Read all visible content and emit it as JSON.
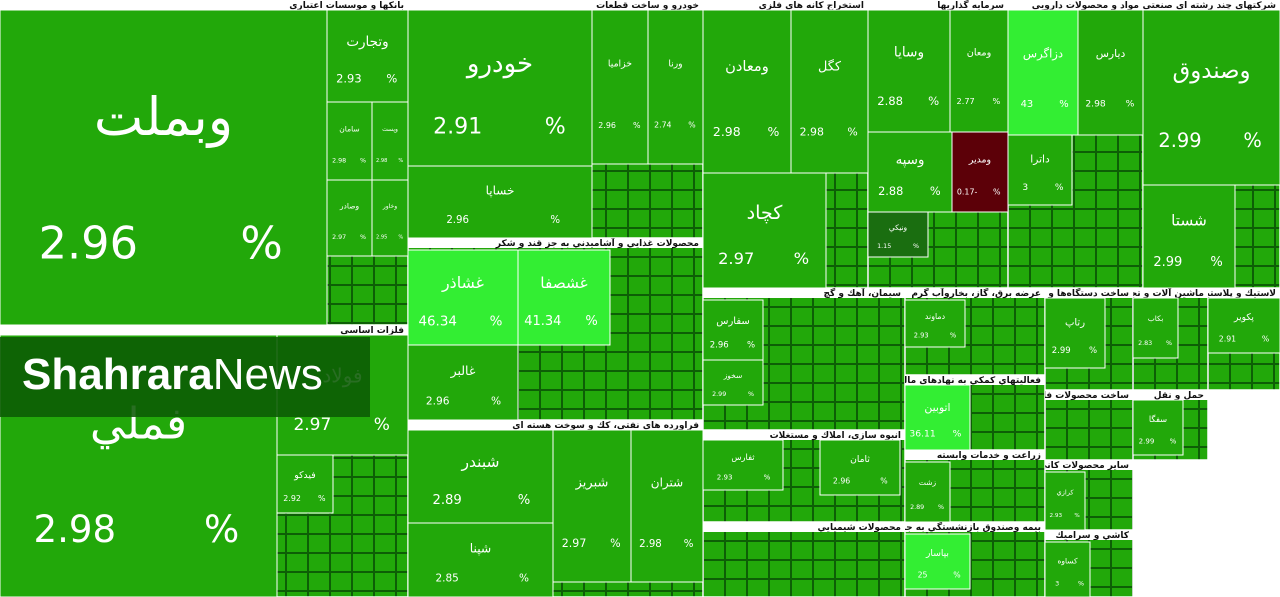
{
  "chart_data": {
    "type": "treemap",
    "unit": "%",
    "sectors": [
      {
        "title": "بانکها و موسسات اعتباری",
        "tiles": [
          {
            "name": "وبملت",
            "value": 2.96,
            "color": "#22a80a"
          },
          {
            "name": "وتجارت",
            "value": 2.93,
            "color": "#22a80a"
          },
          {
            "name": "سامان",
            "value": 2.98,
            "color": "#22a80a"
          },
          {
            "name": "وپست",
            "value": 2.98,
            "color": "#22a80a"
          },
          {
            "name": "وصادر",
            "value": 2.97,
            "color": "#22a80a"
          },
          {
            "name": "وخاور",
            "value": 2.95,
            "color": "#22a80a"
          }
        ]
      },
      {
        "title": "فلزات اساسی",
        "tiles": [
          {
            "name": "فملي",
            "value": 2.98,
            "color": "#22a80a"
          },
          {
            "name": "فولاد",
            "value": 2.97,
            "color": "#22a80a"
          },
          {
            "name": "فيدكو",
            "value": 2.92,
            "color": "#22a80a"
          }
        ]
      },
      {
        "title": "خودرو و ساخت قطعات",
        "tiles": [
          {
            "name": "خودرو",
            "value": 2.91,
            "color": "#22a80a"
          },
          {
            "name": "خساپا",
            "value": 2.96,
            "color": "#22a80a"
          },
          {
            "name": "خزاميا",
            "value": 2.96,
            "color": "#22a80a"
          },
          {
            "name": "ورنا",
            "value": 2.74,
            "color": "#22a80a"
          }
        ]
      },
      {
        "title": "محصولات غذايي و آشاميدني به جز قند و شكر",
        "tiles": [
          {
            "name": "غشاذر",
            "value": 46.34,
            "color": "#33ee33"
          },
          {
            "name": "غشصفا",
            "value": 41.34,
            "color": "#33ee33"
          },
          {
            "name": "غالبر",
            "value": 2.96,
            "color": "#22a80a"
          }
        ]
      },
      {
        "title": "فراورده هاي نفتي، كك و سوخت هسته اي",
        "tiles": [
          {
            "name": "شبندر",
            "value": 2.89,
            "color": "#22a80a"
          },
          {
            "name": "شپنا",
            "value": 2.85,
            "color": "#22a80a"
          },
          {
            "name": "شبريز",
            "value": 2.97,
            "color": "#22a80a"
          },
          {
            "name": "شتران",
            "value": 2.98,
            "color": "#22a80a"
          }
        ]
      },
      {
        "title": "استخراج كانه هاي فلزي",
        "tiles": [
          {
            "name": "ومعادن",
            "value": 2.98,
            "color": "#22a80a"
          },
          {
            "name": "كگل",
            "value": 2.98,
            "color": "#22a80a"
          },
          {
            "name": "كچاد",
            "value": 2.97,
            "color": "#22a80a"
          }
        ]
      },
      {
        "title": "سرمايه گذاريها",
        "tiles": [
          {
            "name": "وسايا",
            "value": 2.88,
            "color": "#22a80a"
          },
          {
            "name": "ومعان",
            "value": 2.77,
            "color": "#22a80a"
          },
          {
            "name": "وسپه",
            "value": 2.88,
            "color": "#22a80a"
          },
          {
            "name": "ومدير",
            "value": -0.17,
            "value_label": "0.17-",
            "color": "#5c0008"
          },
          {
            "name": "ونيكي",
            "value": 1.15,
            "color": "#1a6e10"
          }
        ]
      },
      {
        "title": "مواد و محصولات دارويي",
        "tiles": [
          {
            "name": "دزاگرس",
            "value": 43,
            "color": "#33ee33"
          },
          {
            "name": "ديارس",
            "value": 2.98,
            "color": "#22a80a"
          },
          {
            "name": "داترا",
            "value": 3,
            "color": "#22a80a"
          }
        ]
      },
      {
        "title": "شركتهاي چند رشته اي صنعتي",
        "tiles": [
          {
            "name": "وصندوق",
            "value": 2.99,
            "color": "#22a80a"
          },
          {
            "name": "شستا",
            "value": 2.99,
            "color": "#22a80a"
          }
        ]
      },
      {
        "title": "سيمان، آهك و گچ",
        "tiles": [
          {
            "name": "سفارس",
            "value": 2.96,
            "color": "#22a80a"
          },
          {
            "name": "سخوز",
            "value": 2.99,
            "color": "#22a80a"
          }
        ]
      },
      {
        "title": "عرضه برق، گاز، بخاروآب گرم",
        "tiles": [
          {
            "name": "دماوند",
            "value": 2.93,
            "color": "#22a80a"
          }
        ]
      },
      {
        "title": "فعاليتهاي كمكي به نهادهاي مالي واسط",
        "tiles": [
          {
            "name": "اتوبين",
            "value": 36.11,
            "color": "#33ee33"
          }
        ]
      },
      {
        "title": "انبوه سازي، املاك و مستغلات",
        "tiles": [
          {
            "name": "ثفارس",
            "value": 2.93,
            "color": "#22a80a"
          },
          {
            "name": "ثامان",
            "value": 2.96,
            "color": "#22a80a"
          }
        ]
      },
      {
        "title": "محصولات شيميايي",
        "tiles": []
      },
      {
        "title": "زراعت و خدمات وابسته",
        "tiles": [
          {
            "name": "زشت",
            "value": 2.89,
            "color": "#22a80a"
          }
        ]
      },
      {
        "title": "بيمه وصندوق بازنشستگي به جزتامين اجتماعي",
        "tiles": [
          {
            "name": "بپاسار",
            "value": 25,
            "color": "#33ee33"
          }
        ]
      },
      {
        "title": "ساخت دستگاه‌ها و وسايل ارتباطي",
        "tiles": [
          {
            "name": "رتاپ",
            "value": 2.99,
            "color": "#22a80a"
          }
        ]
      },
      {
        "title": "ماشين آلات و تجهيزات",
        "tiles": [
          {
            "name": "بكاب",
            "value": 2.83,
            "color": "#22a80a"
          }
        ]
      },
      {
        "title": "لاستيك و پلاستيك",
        "tiles": [
          {
            "name": "پكوير",
            "value": 2.91,
            "color": "#22a80a"
          }
        ]
      },
      {
        "title": "ساخت محصولات فلزي",
        "tiles": []
      },
      {
        "title": "حمل و نقل",
        "tiles": [
          {
            "name": "سفگا",
            "value": 2.99,
            "color": "#22a80a"
          }
        ]
      },
      {
        "title": "ساير محصولات كاني غيرفلزي",
        "tiles": [
          {
            "name": "كرازي",
            "value": 2.93,
            "color": "#22a80a"
          }
        ]
      },
      {
        "title": "كاشي و سراميك",
        "tiles": [
          {
            "name": "كساوه",
            "value": 3,
            "color": "#22a80a"
          }
        ]
      }
    ]
  },
  "watermark": {
    "bold": "Shahrara",
    "normal": "News"
  }
}
